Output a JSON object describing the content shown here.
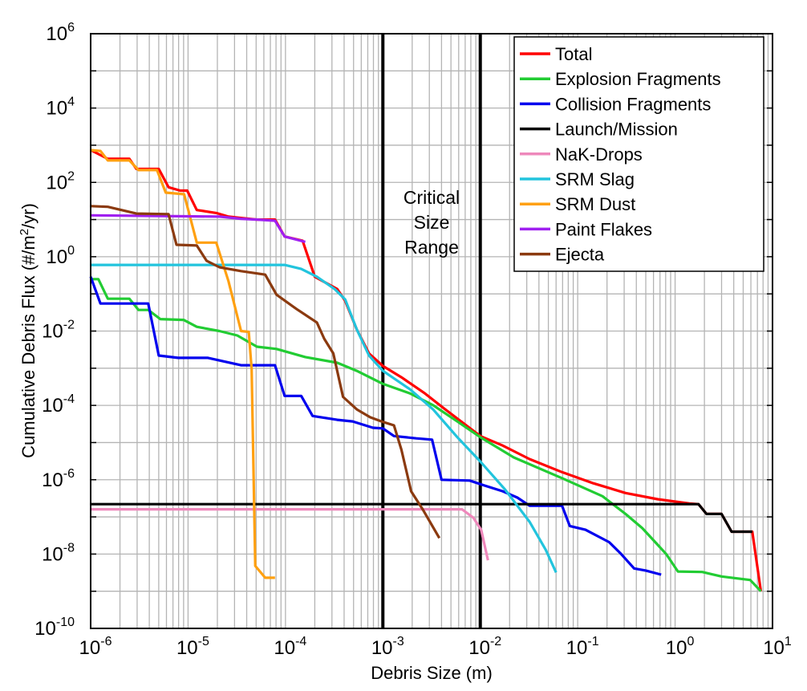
{
  "chart_data": {
    "type": "line",
    "title": "",
    "xlabel": "Debris Size (m)",
    "ylabel_parts": {
      "pre": "Cumulative Debris Flux (#/m",
      "sup": "2",
      "post": "/yr)"
    },
    "xscale": "log",
    "yscale": "log",
    "xlim": [
      1e-06,
      10
    ],
    "ylim": [
      1e-10,
      1000000.0
    ],
    "grid": true,
    "legend_placement": "top-right",
    "x_ticks": [
      {
        "value": 1e-06,
        "base": "10",
        "exp": "-6"
      },
      {
        "value": 1e-05,
        "base": "10",
        "exp": "-5"
      },
      {
        "value": 0.0001,
        "base": "10",
        "exp": "-4"
      },
      {
        "value": 0.001,
        "base": "10",
        "exp": "-3"
      },
      {
        "value": 0.01,
        "base": "10",
        "exp": "-2"
      },
      {
        "value": 0.1,
        "base": "10",
        "exp": "-1"
      },
      {
        "value": 1,
        "base": "10",
        "exp": "0"
      },
      {
        "value": 10,
        "base": "10",
        "exp": "1"
      }
    ],
    "y_ticks": [
      {
        "value": 1000000.0,
        "base": "10",
        "exp": "6"
      },
      {
        "value": 10000.0,
        "base": "10",
        "exp": "4"
      },
      {
        "value": 100.0,
        "base": "10",
        "exp": "2"
      },
      {
        "value": 1,
        "base": "10",
        "exp": "0"
      },
      {
        "value": 0.01,
        "base": "10",
        "exp": "-2"
      },
      {
        "value": 0.0001,
        "base": "10",
        "exp": "-4"
      },
      {
        "value": 1e-06,
        "base": "10",
        "exp": "-6"
      },
      {
        "value": 1e-08,
        "base": "10",
        "exp": "-8"
      },
      {
        "value": 1e-10,
        "base": "10",
        "exp": "-10"
      }
    ],
    "vertical_lines": [
      0.001,
      0.01
    ],
    "annotation": [
      "Critical",
      "Size",
      "Range"
    ],
    "series": [
      {
        "name": "Total",
        "color": "#ff0000",
        "points": [
          [
            1e-06,
            740
          ],
          [
            1.5e-06,
            430
          ],
          [
            2.5e-06,
            430
          ],
          [
            2.95e-06,
            230
          ],
          [
            5e-06,
            230
          ],
          [
            6.3e-06,
            74
          ],
          [
            8.3e-06,
            60
          ],
          [
            9.8e-06,
            60
          ],
          [
            1.23e-05,
            18
          ],
          [
            1.95e-05,
            15
          ],
          [
            2.6e-05,
            12
          ],
          [
            3.5e-05,
            11
          ],
          [
            5.1e-05,
            10
          ],
          [
            7.8e-05,
            10
          ],
          [
            9.8e-05,
            3.5
          ],
          [
            0.00015,
            2.7
          ],
          [
            0.0002,
            0.29
          ],
          [
            0.00034,
            0.135
          ],
          [
            0.00041,
            0.065
          ],
          [
            0.00054,
            0.011
          ],
          [
            0.00072,
            0.0025
          ],
          [
            0.001,
            0.00115
          ],
          [
            0.00155,
            0.00057
          ],
          [
            0.0027,
            0.00021
          ],
          [
            0.0044,
            7.7e-05
          ],
          [
            0.01,
            1.5e-05
          ],
          [
            0.017,
            8.3e-06
          ],
          [
            0.032,
            3.6e-06
          ],
          [
            0.069,
            1.6e-06
          ],
          [
            0.145,
            8e-07
          ],
          [
            0.31,
            4.4e-07
          ],
          [
            0.66,
            3e-07
          ],
          [
            1.4,
            2.3e-07
          ],
          [
            1.74,
            2.2e-07
          ],
          [
            2.1,
            1.2e-07
          ],
          [
            3.0,
            1.2e-07
          ],
          [
            3.8,
            4e-08
          ],
          [
            6.2,
            4e-08
          ],
          [
            7.6,
            1e-09
          ]
        ]
      },
      {
        "name": "Explosion Fragments",
        "color": "#22cc33",
        "points": [
          [
            1e-06,
            0.25
          ],
          [
            1.2e-06,
            0.25
          ],
          [
            1.5e-06,
            0.074
          ],
          [
            2.5e-06,
            0.074
          ],
          [
            3.1e-06,
            0.037
          ],
          [
            3.9e-06,
            0.037
          ],
          [
            5.2e-06,
            0.021
          ],
          [
            9e-06,
            0.02
          ],
          [
            1.23e-05,
            0.013
          ],
          [
            2.1e-05,
            0.01
          ],
          [
            3.2e-05,
            0.0076
          ],
          [
            5.1e-05,
            0.0038
          ],
          [
            8.1e-05,
            0.0033
          ],
          [
            0.00016,
            0.002
          ],
          [
            0.00034,
            0.0014
          ],
          [
            0.00054,
            0.00085
          ],
          [
            0.001,
            0.00038
          ],
          [
            0.0019,
            0.00021
          ],
          [
            0.0033,
            0.0001
          ],
          [
            0.0058,
            3.7e-05
          ],
          [
            0.01,
            1.4e-05
          ],
          [
            0.022,
            4e-06
          ],
          [
            0.069,
            1.1e-06
          ],
          [
            0.18,
            3.6e-07
          ],
          [
            0.31,
            1.2e-07
          ],
          [
            0.46,
            5e-08
          ],
          [
            0.66,
            1.8e-08
          ],
          [
            0.81,
            1e-08
          ],
          [
            1.07,
            3.4e-09
          ],
          [
            1.9,
            3.3e-09
          ],
          [
            3.0,
            2.5e-09
          ],
          [
            5.9,
            2e-09
          ],
          [
            7.6,
            1e-09
          ]
        ]
      },
      {
        "name": "Collision Fragments",
        "color": "#0000ee",
        "points": [
          [
            1e-06,
            0.29
          ],
          [
            1.26e-06,
            0.055
          ],
          [
            3.9e-06,
            0.055
          ],
          [
            5e-06,
            0.0022
          ],
          [
            7.9e-06,
            0.0019
          ],
          [
            1.6e-05,
            0.0019
          ],
          [
            3.5e-05,
            0.0012
          ],
          [
            7.8e-05,
            0.0012
          ],
          [
            9.8e-05,
            0.00018
          ],
          [
            0.000145,
            0.00018
          ],
          [
            0.00019,
            5.2e-05
          ],
          [
            0.00034,
            4.1e-05
          ],
          [
            0.00049,
            3.7e-05
          ],
          [
            0.00079,
            2.5e-05
          ],
          [
            0.001,
            2.4e-05
          ],
          [
            0.0013,
            1.5e-05
          ],
          [
            0.0022,
            1.3e-05
          ],
          [
            0.0032,
            1.2e-05
          ],
          [
            0.004,
            1e-06
          ],
          [
            0.0078,
            9.5e-07
          ],
          [
            0.011,
            7e-07
          ],
          [
            0.017,
            4.9e-07
          ],
          [
            0.024,
            3.3e-07
          ],
          [
            0.032,
            2e-07
          ],
          [
            0.069,
            2e-07
          ],
          [
            0.083,
            5.7e-08
          ],
          [
            0.12,
            4.5e-08
          ],
          [
            0.21,
            2.1e-08
          ],
          [
            0.28,
            1e-08
          ],
          [
            0.38,
            4.1e-09
          ],
          [
            0.5,
            3.6e-09
          ],
          [
            0.72,
            2.8e-09
          ]
        ]
      },
      {
        "name": "Launch/Mission",
        "color": "#000000",
        "points": [
          [
            1e-06,
            2.2e-07
          ],
          [
            1.74,
            2.2e-07
          ],
          [
            2.1,
            1.2e-07
          ],
          [
            3.0,
            1.2e-07
          ],
          [
            3.8,
            4e-08
          ],
          [
            6.2,
            4e-08
          ]
        ]
      },
      {
        "name": "NaK-Drops",
        "color": "#ee88bb",
        "points": [
          [
            1e-06,
            1.6e-07
          ],
          [
            0.0065,
            1.6e-07
          ],
          [
            0.0085,
            9.5e-08
          ],
          [
            0.0102,
            4.5e-08
          ],
          [
            0.012,
            6.8e-09
          ]
        ]
      },
      {
        "name": "SRM Slag",
        "color": "#22c4dd",
        "points": [
          [
            1e-06,
            0.6
          ],
          [
            9.8e-05,
            0.6
          ],
          [
            0.000145,
            0.47
          ],
          [
            0.00021,
            0.29
          ],
          [
            0.00032,
            0.135
          ],
          [
            0.00041,
            0.071
          ],
          [
            0.00054,
            0.011
          ],
          [
            0.00072,
            0.0022
          ],
          [
            0.001,
            0.00085
          ],
          [
            0.0019,
            0.00027
          ],
          [
            0.0033,
            7.7e-05
          ],
          [
            0.0058,
            1.4e-05
          ],
          [
            0.01,
            3.1e-06
          ],
          [
            0.018,
            5.4e-07
          ],
          [
            0.032,
            7.4e-08
          ],
          [
            0.047,
            1.3e-08
          ],
          [
            0.06,
            3.2e-09
          ]
        ]
      },
      {
        "name": "SRM Dust",
        "color": "#ffa010",
        "points": [
          [
            1e-06,
            740
          ],
          [
            1.26e-06,
            700
          ],
          [
            1.5e-06,
            390
          ],
          [
            2.5e-06,
            390
          ],
          [
            3.1e-06,
            215
          ],
          [
            4.8e-06,
            215
          ],
          [
            5.9e-06,
            53
          ],
          [
            9.1e-06,
            48
          ],
          [
            1.23e-05,
            2.4
          ],
          [
            1.95e-05,
            2.4
          ],
          [
            2.6e-05,
            0.22
          ],
          [
            3.5e-05,
            0.01
          ],
          [
            4.2e-05,
            0.0095
          ],
          [
            4.5e-05,
            0.00093
          ],
          [
            4.9e-05,
            4.8e-09
          ],
          [
            6.2e-05,
            2.3e-09
          ],
          [
            7.8e-05,
            2.3e-09
          ]
        ]
      },
      {
        "name": "Paint Flakes",
        "color": "#a020f0",
        "points": [
          [
            1e-06,
            13
          ],
          [
            2.1e-05,
            12
          ],
          [
            3.5e-05,
            10.5
          ],
          [
            5.1e-05,
            10
          ],
          [
            7.8e-05,
            9.3
          ],
          [
            9.8e-05,
            3.5
          ],
          [
            0.00016,
            2.5
          ]
        ]
      },
      {
        "name": "Ejecta",
        "color": "#8b3a0f",
        "points": [
          [
            1e-06,
            23
          ],
          [
            1.5e-06,
            22
          ],
          [
            2.95e-06,
            14.5
          ],
          [
            6.3e-06,
            14
          ],
          [
            7.6e-06,
            2.1
          ],
          [
            1.23e-05,
            2.0
          ],
          [
            1.55e-05,
            0.78
          ],
          [
            2.1e-05,
            0.52
          ],
          [
            3.5e-05,
            0.41
          ],
          [
            6.2e-05,
            0.33
          ],
          [
            8.1e-05,
            0.095
          ],
          [
            0.00013,
            0.039
          ],
          [
            0.00021,
            0.017
          ],
          [
            0.00025,
            0.0062
          ],
          [
            0.00031,
            0.0025
          ],
          [
            0.00039,
            0.00017
          ],
          [
            0.00054,
            7.8e-05
          ],
          [
            0.00074,
            4.8e-05
          ],
          [
            0.001,
            3.6e-05
          ],
          [
            0.0013,
            2.9e-05
          ],
          [
            0.00155,
            6.4e-06
          ],
          [
            0.00195,
            4.9e-07
          ],
          [
            0.0026,
            1.5e-07
          ],
          [
            0.0038,
            2.7e-08
          ]
        ]
      }
    ]
  }
}
